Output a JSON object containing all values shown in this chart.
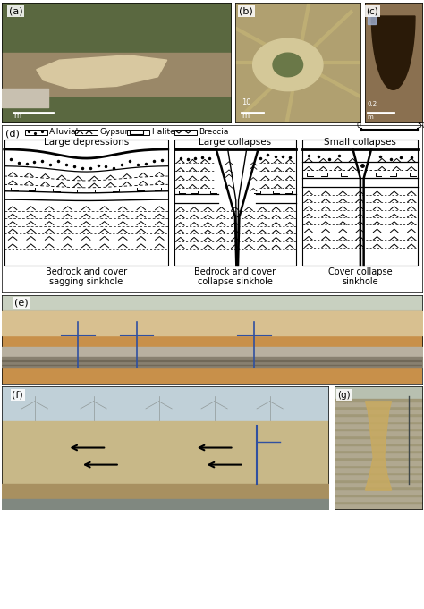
{
  "fig_width": 4.74,
  "fig_height": 6.81,
  "dpi": 100,
  "bg_color": "#ffffff",
  "panel_label_fontsize": 8,
  "diagram_title_fontsize": 7.5,
  "diagram_label_fontsize": 7,
  "legend_fontsize": 6.5,
  "large_dep_title": "Large depressions",
  "large_col_title": "Large collapses",
  "small_col_title": "Small collapses",
  "large_dep_label": "Bedrock and cover\nsagging sinkhole",
  "large_col_label": "Bedrock and cover\ncollapse sinkhole",
  "small_col_label": "Cover collapse\nsinkhole",
  "legend_items": [
    "Alluvial",
    "Gypsum",
    "Halite",
    "Breccia"
  ],
  "colors": {
    "a_bg": "#8a7d6a",
    "a_sky": "#7a9060",
    "a_sand": "#d4c8a0",
    "b_bg": "#b0a070",
    "b_sky": "#a8a068",
    "c_bg": "#7a6848",
    "c_hole": "#3a2810",
    "e_sky": "#c8d0c0",
    "e_cut_top": "#c8c0b0",
    "e_cut_mid": "#c8904a",
    "e_cut_bot": "#b07840",
    "e_rail": "#888070",
    "e_pole": "#3050a0",
    "f_sky": "#c0d0d8",
    "f_land_top": "#c8b888",
    "f_land_mid": "#c0a870",
    "f_land_bot": "#a89060",
    "f_pole": "#3050a0",
    "g_bg": "#a8a090",
    "g_sky": "#b8c0b8",
    "g_plume": "#c8aa60"
  }
}
